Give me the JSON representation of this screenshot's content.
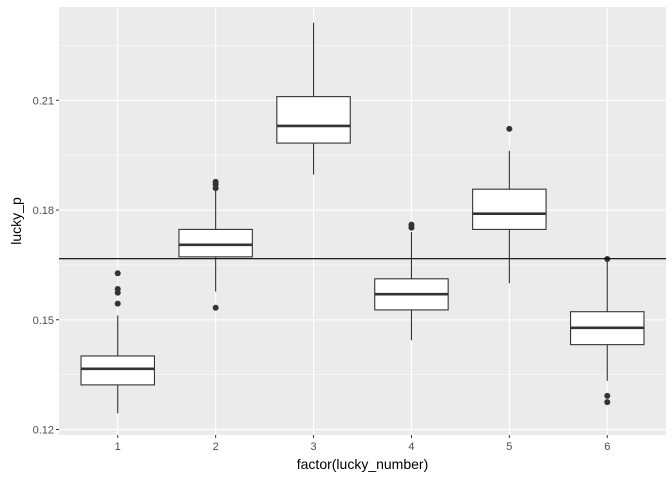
{
  "chart_data": {
    "type": "boxplot",
    "xlabel": "factor(lucky_number)",
    "ylabel": "lucky_p",
    "ylim": [
      0.1185,
      0.2355
    ],
    "yticks": [
      0.12,
      0.15,
      0.18,
      0.21
    ],
    "ytick_labels": [
      "0.12",
      "0.15",
      "0.18",
      "0.21"
    ],
    "grid": true,
    "reference_line": 0.1667,
    "categories": [
      "1",
      "2",
      "3",
      "4",
      "5",
      "6"
    ],
    "boxes": [
      {
        "category": "1",
        "whisker_low": 0.1244,
        "q1": 0.1322,
        "median": 0.1366,
        "q3": 0.1401,
        "whisker_high": 0.1512,
        "outliers": [
          0.1627,
          0.1584,
          0.1574,
          0.1544
        ]
      },
      {
        "category": "2",
        "whisker_low": 0.1577,
        "q1": 0.1672,
        "median": 0.1705,
        "q3": 0.1747,
        "whisker_high": 0.1855,
        "outliers": [
          0.1533,
          0.187,
          0.186,
          0.1877
        ]
      },
      {
        "category": "3",
        "whisker_low": 0.1897,
        "q1": 0.1983,
        "median": 0.203,
        "q3": 0.211,
        "whisker_high": 0.2312,
        "outliers": []
      },
      {
        "category": "4",
        "whisker_low": 0.1444,
        "q1": 0.1527,
        "median": 0.157,
        "q3": 0.1612,
        "whisker_high": 0.174,
        "outliers": [
          0.1752,
          0.176
        ]
      },
      {
        "category": "5",
        "whisker_low": 0.16,
        "q1": 0.1747,
        "median": 0.179,
        "q3": 0.1857,
        "whisker_high": 0.1962,
        "outliers": [
          0.2022
        ]
      },
      {
        "category": "6",
        "whisker_low": 0.1333,
        "q1": 0.1432,
        "median": 0.1478,
        "q3": 0.1522,
        "whisker_high": 0.166,
        "outliers": [
          0.1292,
          0.1275,
          0.1666
        ]
      }
    ],
    "colors": {
      "panel": "#ebebeb",
      "grid": "#ffffff",
      "box_fill": "#ffffff",
      "box_stroke": "#333333",
      "point": "#333333",
      "reference_line": "#000000",
      "tick": "#333333"
    }
  }
}
